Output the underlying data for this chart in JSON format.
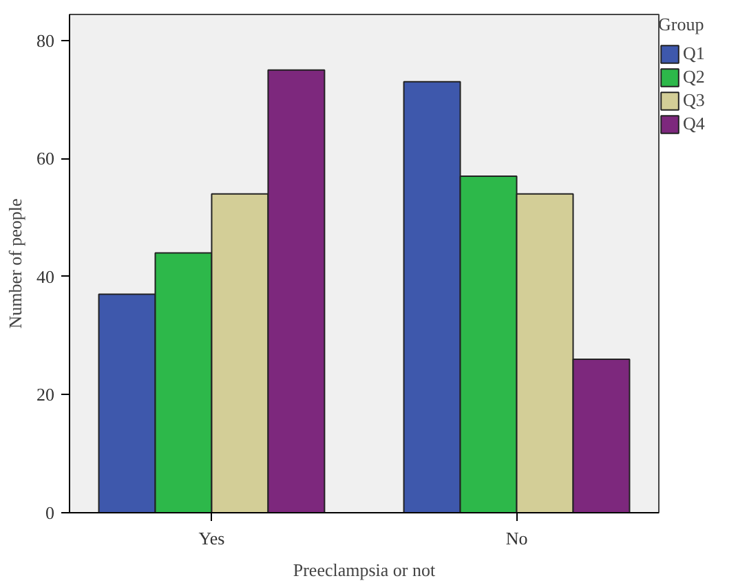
{
  "chart_data": {
    "type": "bar",
    "xlabel": "Preeclampsia or not",
    "ylabel": "Number of people",
    "legend_title": "Group",
    "categories": [
      "Yes",
      "No"
    ],
    "series": [
      {
        "name": "Q1",
        "color": "#3e58ac",
        "values": [
          37,
          73
        ]
      },
      {
        "name": "Q2",
        "color": "#2db84a",
        "values": [
          44,
          57
        ]
      },
      {
        "name": "Q3",
        "color": "#d3ce97",
        "values": [
          54,
          54
        ]
      },
      {
        "name": "Q4",
        "color": "#7d287d",
        "values": [
          75,
          26
        ]
      }
    ],
    "ylim": [
      0,
      84.4
    ],
    "yticks": [
      0,
      20,
      40,
      60,
      80
    ],
    "legend": "right"
  }
}
